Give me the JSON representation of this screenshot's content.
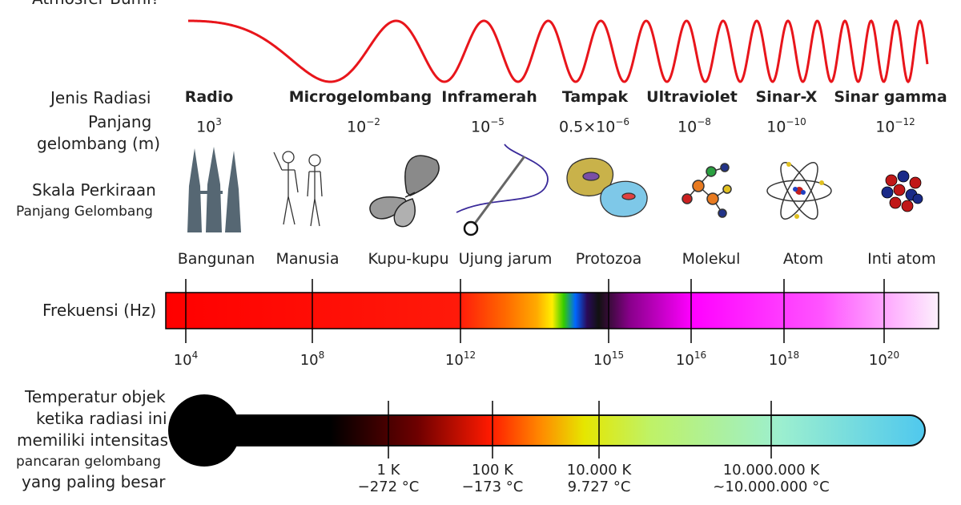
{
  "header": {
    "question": "Atmosfer Bumi?"
  },
  "row_labels": {
    "type": "Jenis Radiasi",
    "wavelength_line1": "Panjang",
    "wavelength_line2": "gelombang (m)",
    "scale_line1": "Skala Perkiraan",
    "scale_line2": "Panjang Gelombang",
    "frequency": "Frekuensi (Hz)",
    "temp_line1": "Temperatur objek",
    "temp_line2": "ketika radiasi ini",
    "temp_line3": "memiliki intensitas",
    "temp_line4": "pancaran gelombang",
    "temp_line5": "yang paling besar"
  },
  "radiation_types": [
    {
      "name": "Radio",
      "wl_base": "10",
      "wl_exp": "3"
    },
    {
      "name": "Microgelombang",
      "wl_base": "10",
      "wl_exp": "−2"
    },
    {
      "name": "Inframerah",
      "wl_base": "10",
      "wl_exp": "−5"
    },
    {
      "name": "Tampak",
      "wl_base": "0.5×10",
      "wl_exp": "−6"
    },
    {
      "name": "Ultraviolet",
      "wl_base": "10",
      "wl_exp": "−8"
    },
    {
      "name": "Sinar-X",
      "wl_base": "10",
      "wl_exp": "−10"
    },
    {
      "name": "Sinar gamma",
      "wl_base": "10",
      "wl_exp": "−12"
    }
  ],
  "scale_objects": [
    {
      "name": "Bangunan",
      "icon": "building-icon"
    },
    {
      "name": "Manusia",
      "icon": "humans-icon"
    },
    {
      "name": "Kupu-kupu",
      "icon": "butterfly-icon"
    },
    {
      "name": "Ujung jarum",
      "icon": "needle-icon"
    },
    {
      "name": "Protozoa",
      "icon": "protozoa-icon"
    },
    {
      "name": "Molekul",
      "icon": "molecule-icon"
    },
    {
      "name": "Atom",
      "icon": "atom-icon"
    },
    {
      "name": "Inti atom",
      "icon": "nucleus-icon"
    }
  ],
  "frequency_ticks": [
    {
      "base": "10",
      "exp": "4"
    },
    {
      "base": "10",
      "exp": "8"
    },
    {
      "base": "10",
      "exp": "12"
    },
    {
      "base": "10",
      "exp": "15"
    },
    {
      "base": "10",
      "exp": "16"
    },
    {
      "base": "10",
      "exp": "18"
    },
    {
      "base": "10",
      "exp": "20"
    }
  ],
  "temperature_ticks": [
    {
      "kelvin": "1 K",
      "celsius": "−272 °C"
    },
    {
      "kelvin": "100 K",
      "celsius": "−173 °C"
    },
    {
      "kelvin": "10.000 K",
      "celsius": "9.727 °C"
    },
    {
      "kelvin": "10.000.000 K",
      "celsius": "~10.000.000 °C"
    }
  ],
  "colors": {
    "wave": "#e8151b",
    "text": "#222222"
  }
}
